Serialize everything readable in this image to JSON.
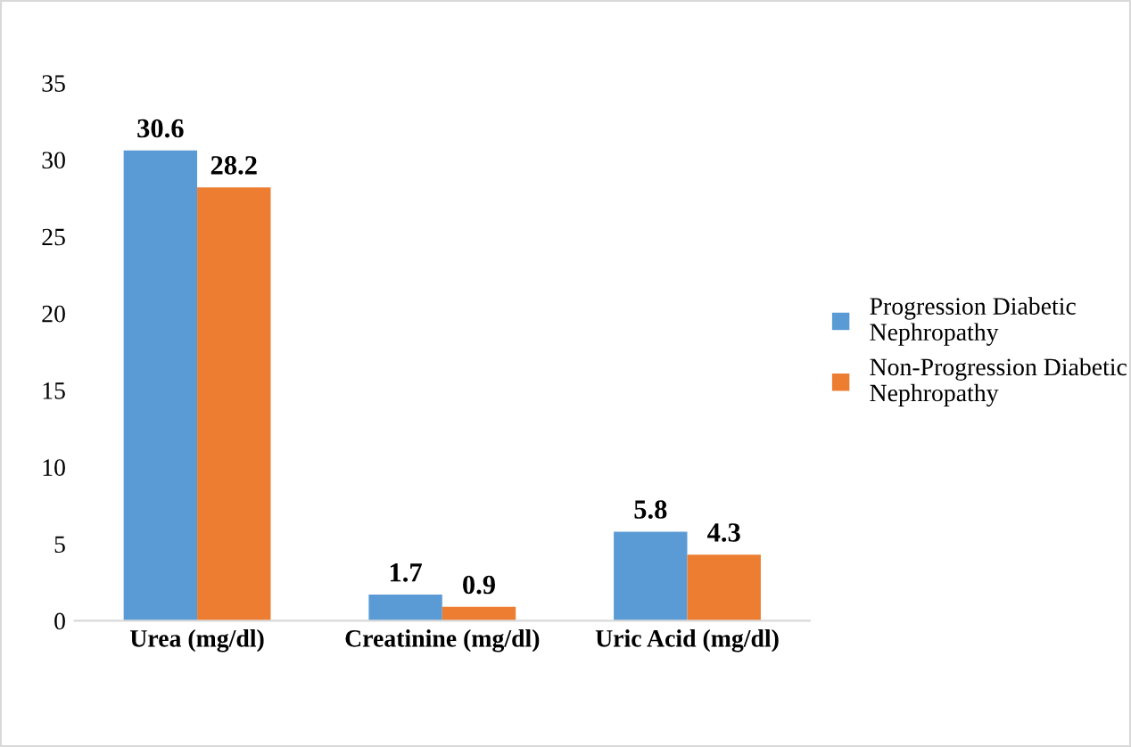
{
  "chart_data": {
    "type": "bar",
    "categories": [
      "Urea (mg/dl)",
      "Creatinine (mg/dl)",
      "Uric Acid (mg/dl)"
    ],
    "series": [
      {
        "name": "Progression Diabetic\nNephropathy",
        "color": "#5b9bd5",
        "values": [
          30.6,
          1.7,
          5.8
        ]
      },
      {
        "name": "Non-Progression Diabetic\nNephropathy",
        "color": "#ed7d31",
        "values": [
          28.2,
          0.9,
          4.3
        ]
      }
    ],
    "ylim": [
      0,
      35
    ],
    "yticks": [
      0,
      5,
      10,
      15,
      20,
      25,
      30,
      35
    ],
    "grid": false,
    "legend": "right",
    "data_labels": true
  }
}
